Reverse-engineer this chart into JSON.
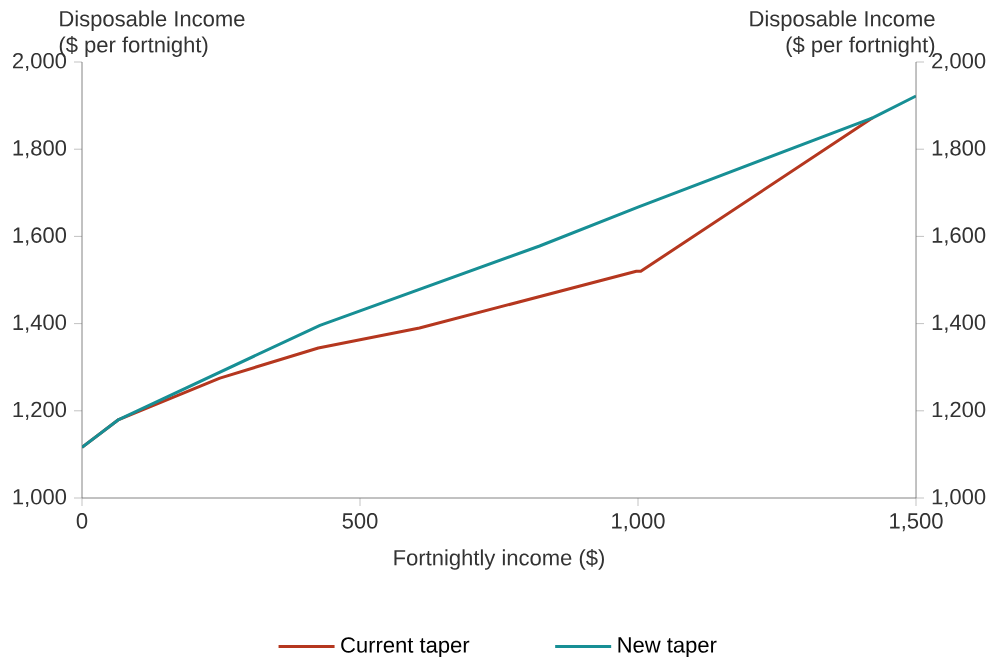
{
  "chart_data": {
    "type": "line",
    "xlabel": "Fortnightly income ($)",
    "ylabel": "Disposable Income\n($ per fortnight)",
    "y2label": "Disposable Income\n($ per fortnight)",
    "xlim": [
      0,
      1500
    ],
    "xticks": [
      0,
      500,
      {
        "value": 1000,
        "label": "1,000"
      },
      {
        "value": 1500,
        "label": "1,500"
      }
    ],
    "ylim": [
      1000,
      2000
    ],
    "yticks": [
      {
        "value": 1000,
        "label": "1,000"
      },
      {
        "value": 1200,
        "label": "1,200"
      },
      {
        "value": 1400,
        "label": "1,400"
      },
      {
        "value": 1600,
        "label": "1,600"
      },
      {
        "value": 1800,
        "label": "1,800"
      },
      {
        "value": 2000,
        "label": "2,000"
      }
    ],
    "y2lim": [
      1000,
      2000
    ],
    "y2ticks": [
      {
        "value": 1000,
        "label": "1,000"
      },
      {
        "value": 1200,
        "label": "1,200"
      },
      {
        "value": 1400,
        "label": "1,400"
      },
      {
        "value": 1600,
        "label": "1,600"
      },
      {
        "value": 1800,
        "label": "1,800"
      },
      {
        "value": 2000,
        "label": "2,000"
      }
    ],
    "legend": "bottom",
    "grid": false,
    "series": [
      {
        "name": "Current taper",
        "color": "#b5371f",
        "x": [
          0,
          66,
          248,
          425,
          607,
          997,
          1005,
          1422
        ],
        "values": [
          1116,
          1180,
          1275,
          1344,
          1390,
          1520,
          1520,
          1872
        ]
      },
      {
        "name": "New taper",
        "color": "#178f95",
        "x": [
          0,
          66,
          428,
          823,
          1000,
          1422,
          1500
        ],
        "values": [
          1116,
          1180,
          1396,
          1578,
          1667,
          1872,
          1922
        ]
      }
    ]
  }
}
